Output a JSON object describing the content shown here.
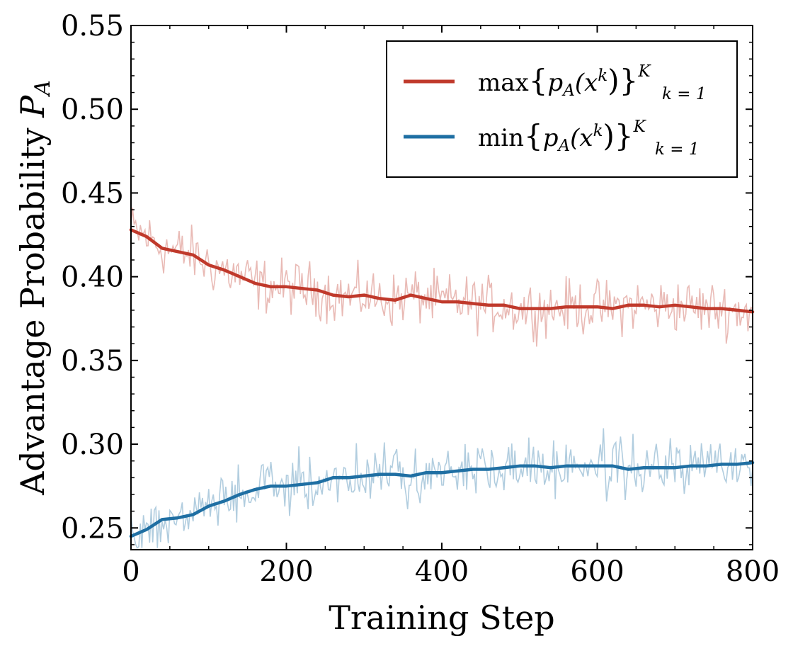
{
  "chart_data": {
    "type": "line",
    "xlabel": "Training Step",
    "ylabel_text": "Advantage Probability ",
    "ylabel_symbol": "P",
    "ylabel_subscript": "A",
    "xlim": [
      0,
      800
    ],
    "ylim": [
      0.237,
      0.55
    ],
    "xticks": [
      0,
      200,
      400,
      600,
      800
    ],
    "xtick_labels": [
      "0",
      "200",
      "400",
      "600",
      "800"
    ],
    "yticks": [
      0.25,
      0.3,
      0.35,
      0.4,
      0.45,
      0.5,
      0.55
    ],
    "ytick_labels": [
      "0.25",
      "0.30",
      "0.35",
      "0.40",
      "0.45",
      "0.50",
      "0.55"
    ],
    "grid": false,
    "legend_position": "top-right",
    "colors": {
      "max": "#c0392b",
      "min": "#1f6fa3"
    },
    "series": [
      {
        "name": "max{p_A(x^k)}_{k=1}^K",
        "legend_parts": {
          "func": "max",
          "open": "{",
          "p": "p",
          "psub": "A",
          "arg": "(x",
          "sup": "k",
          "close": ")}",
          "sup2": "K",
          "sub2": "k = 1"
        },
        "color": "#c0392b",
        "smoothed": {
          "x": [
            0,
            20,
            40,
            60,
            80,
            100,
            120,
            140,
            160,
            180,
            200,
            220,
            240,
            260,
            280,
            300,
            320,
            340,
            360,
            380,
            400,
            420,
            440,
            460,
            480,
            500,
            520,
            540,
            560,
            580,
            600,
            620,
            640,
            660,
            680,
            700,
            720,
            740,
            760,
            780,
            800
          ],
          "y": [
            0.428,
            0.424,
            0.417,
            0.415,
            0.413,
            0.407,
            0.404,
            0.4,
            0.396,
            0.394,
            0.394,
            0.393,
            0.392,
            0.389,
            0.388,
            0.389,
            0.387,
            0.386,
            0.389,
            0.387,
            0.385,
            0.385,
            0.384,
            0.383,
            0.383,
            0.381,
            0.381,
            0.381,
            0.382,
            0.382,
            0.382,
            0.381,
            0.383,
            0.383,
            0.382,
            0.383,
            0.382,
            0.381,
            0.381,
            0.38,
            0.379
          ]
        },
        "noise_amplitude": 0.008
      },
      {
        "name": "min{p_A(x^k)}_{k=1}^K",
        "legend_parts": {
          "func": "min",
          "open": "{",
          "p": "p",
          "psub": "A",
          "arg": "(x",
          "sup": "k",
          "close": ")}",
          "sup2": "K",
          "sub2": "k = 1"
        },
        "color": "#1f6fa3",
        "smoothed": {
          "x": [
            0,
            20,
            40,
            60,
            80,
            100,
            120,
            140,
            160,
            180,
            200,
            220,
            240,
            260,
            280,
            300,
            320,
            340,
            360,
            380,
            400,
            420,
            440,
            460,
            480,
            500,
            520,
            540,
            560,
            580,
            600,
            620,
            640,
            660,
            680,
            700,
            720,
            740,
            760,
            780,
            800
          ],
          "y": [
            0.245,
            0.249,
            0.255,
            0.256,
            0.258,
            0.263,
            0.266,
            0.27,
            0.273,
            0.275,
            0.275,
            0.276,
            0.277,
            0.28,
            0.28,
            0.281,
            0.282,
            0.282,
            0.281,
            0.283,
            0.283,
            0.284,
            0.285,
            0.285,
            0.286,
            0.287,
            0.287,
            0.286,
            0.287,
            0.287,
            0.287,
            0.287,
            0.285,
            0.286,
            0.286,
            0.286,
            0.287,
            0.287,
            0.288,
            0.288,
            0.289
          ]
        },
        "noise_amplitude": 0.008
      }
    ]
  }
}
